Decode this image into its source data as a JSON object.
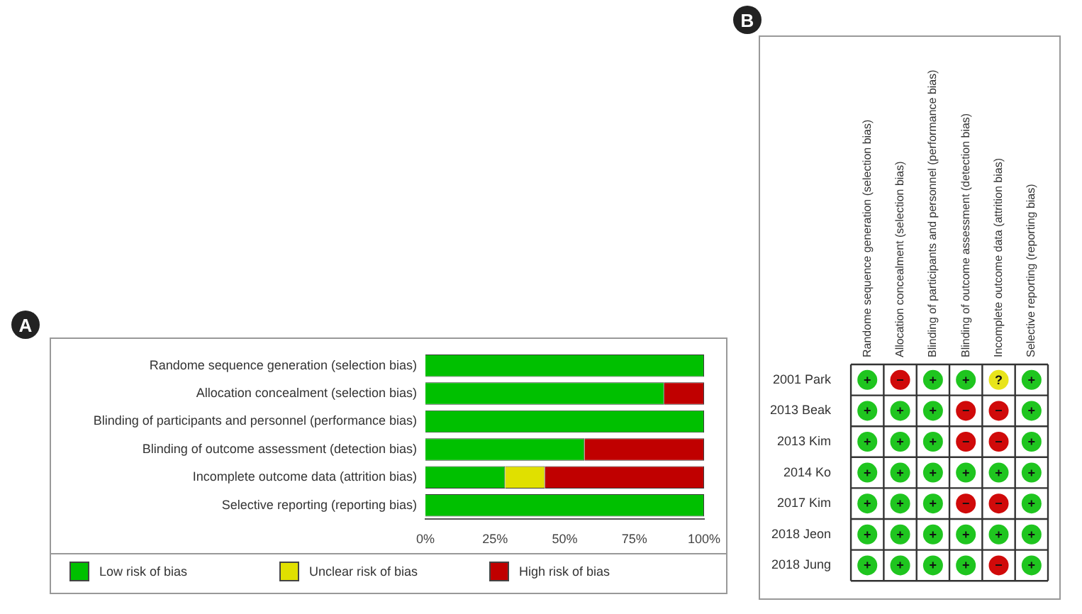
{
  "chart_data": [
    {
      "type": "bar",
      "title": "A",
      "orientation": "horizontal",
      "stacked": true,
      "categories": [
        "Randome sequence generation (selection bias)",
        "Allocation concealment (selection bias)",
        "Blinding of participants and personnel (performance bias)",
        "Blinding of outcome assessment (detection bias)",
        "Incomplete outcome data (attrition bias)",
        "Selective reporting (reporting bias)"
      ],
      "series": [
        {
          "name": "Low risk of bias",
          "color": "#00c000",
          "values": [
            100,
            85.7,
            100,
            57.1,
            28.6,
            100
          ]
        },
        {
          "name": "Unclear risk of bias",
          "color": "#e0e000",
          "values": [
            0,
            0,
            0,
            0,
            14.3,
            0
          ]
        },
        {
          "name": "High risk of bias",
          "color": "#c00000",
          "values": [
            0,
            14.3,
            0,
            42.9,
            57.1,
            0
          ]
        }
      ],
      "xlim": [
        0,
        100
      ],
      "xticks": [
        {
          "value": 0,
          "label": "0%"
        },
        {
          "value": 25,
          "label": "25%"
        },
        {
          "value": 50,
          "label": "50%"
        },
        {
          "value": 75,
          "label": "75%"
        },
        {
          "value": 100,
          "label": "100%"
        }
      ],
      "grid": false,
      "legend": "bottom"
    },
    {
      "type": "heatmap",
      "title": "B",
      "categories": [
        "Randome sequence generation (selection bias)",
        "Allocation concealment (selection bias)",
        "Blinding of participants and personnel (performance bias)",
        "Blinding of outcome assessment (detection bias)",
        "Incomplete outcome data (attrition bias)",
        "Selective reporting (reporting bias)"
      ],
      "y_categories": [
        "2001 Park",
        "2013 Beak",
        "2013 Kim",
        "2014 Ko",
        "2017 Kim",
        "2018 Jeon",
        "2018 Jung"
      ],
      "cells": [
        [
          "+",
          "−",
          "+",
          "+",
          "?",
          "+"
        ],
        [
          "+",
          "+",
          "+",
          "−",
          "−",
          "+"
        ],
        [
          "+",
          "+",
          "+",
          "−",
          "−",
          "+"
        ],
        [
          "+",
          "+",
          "+",
          "+",
          "+",
          "+"
        ],
        [
          "+",
          "+",
          "+",
          "−",
          "−",
          "+"
        ],
        [
          "+",
          "+",
          "+",
          "+",
          "+",
          "+"
        ],
        [
          "+",
          "+",
          "+",
          "+",
          "−",
          "+"
        ]
      ],
      "colors": [
        [
          "#1fc51f",
          "#d00a0a",
          "#1fc51f",
          "#1fc51f",
          "#e8e41a",
          "#1fc51f"
        ],
        [
          "#1fc51f",
          "#1fc51f",
          "#1fc51f",
          "#d00a0a",
          "#d00a0a",
          "#1fc51f"
        ],
        [
          "#1fc51f",
          "#1fc51f",
          "#1fc51f",
          "#d00a0a",
          "#d00a0a",
          "#1fc51f"
        ],
        [
          "#1fc51f",
          "#1fc51f",
          "#1fc51f",
          "#1fc51f",
          "#1fc51f",
          "#1fc51f"
        ],
        [
          "#1fc51f",
          "#1fc51f",
          "#1fc51f",
          "#d00a0a",
          "#d00a0a",
          "#1fc51f"
        ],
        [
          "#1fc51f",
          "#1fc51f",
          "#1fc51f",
          "#1fc51f",
          "#1fc51f",
          "#1fc51f"
        ],
        [
          "#1fc51f",
          "#1fc51f",
          "#1fc51f",
          "#1fc51f",
          "#d00a0a",
          "#1fc51f"
        ]
      ],
      "grid": true
    }
  ]
}
